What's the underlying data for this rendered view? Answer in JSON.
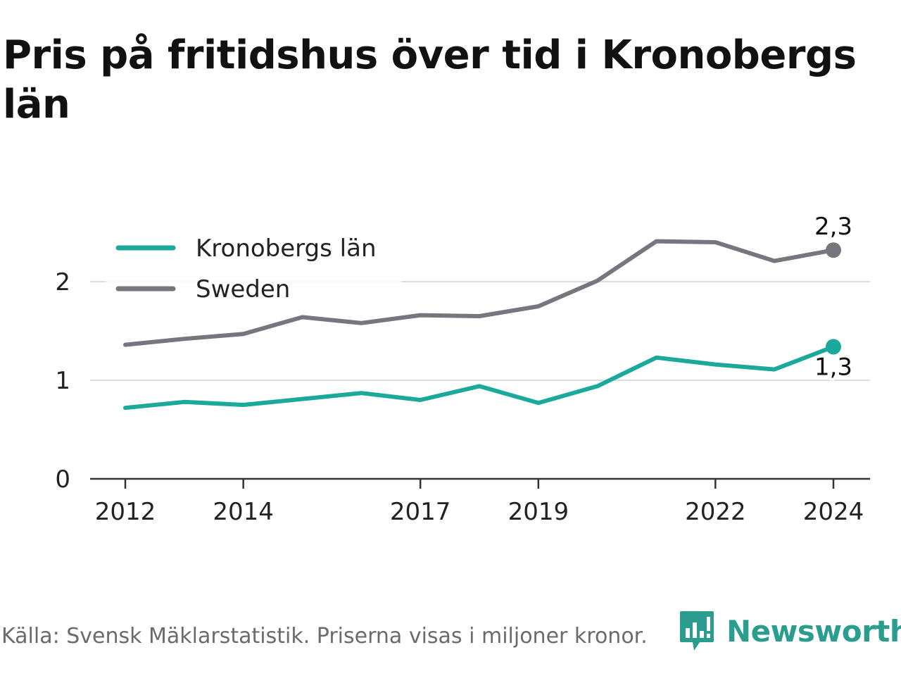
{
  "chart_data": {
    "type": "line",
    "title": "Pris på fritidshus över tid i Kronobergs län",
    "x": [
      2012,
      2013,
      2014,
      2015,
      2016,
      2017,
      2018,
      2019,
      2020,
      2021,
      2022,
      2023,
      2024
    ],
    "x_tick_labels": [
      "2012",
      "2014",
      "2017",
      "2019",
      "2022",
      "2024"
    ],
    "x_ticks": [
      2012,
      2014,
      2017,
      2019,
      2022,
      2024
    ],
    "y_ticks": [
      0,
      1,
      2
    ],
    "y_tick_labels": [
      "0",
      "1",
      "2"
    ],
    "ylim": [
      0,
      2.5
    ],
    "xlabel": "",
    "ylabel": "",
    "grid": true,
    "legend_position": "top-left",
    "series": [
      {
        "name": "Kronobergs län",
        "color": "#1aa99a",
        "values": [
          0.72,
          0.78,
          0.75,
          0.81,
          0.87,
          0.8,
          0.94,
          0.77,
          0.94,
          1.23,
          1.16,
          1.11,
          1.34
        ],
        "end_label": "1,3",
        "end_label_position": "below"
      },
      {
        "name": "Sweden",
        "color": "#76767e",
        "values": [
          1.36,
          1.42,
          1.47,
          1.64,
          1.58,
          1.66,
          1.65,
          1.75,
          2.01,
          2.41,
          2.4,
          2.21,
          2.32
        ],
        "end_label": "2,3",
        "end_label_position": "above"
      }
    ]
  },
  "footer": {
    "source": "Källa: Svensk Mäklarstatistik. Priserna visas i miljoner kronor."
  },
  "brand": {
    "name": "Newsworthy",
    "icon": "newsworthy-logo-icon",
    "color": "#2a9d8f"
  }
}
